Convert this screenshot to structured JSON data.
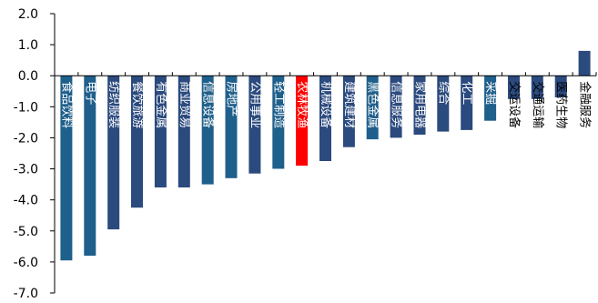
{
  "chart_data": {
    "type": "bar",
    "title": "",
    "xlabel": "",
    "ylabel": "",
    "ylim": [
      -7.0,
      2.0
    ],
    "y_ticks": [
      "2.0",
      "1.0",
      "0.0",
      "-1.0",
      "-2.0",
      "-3.0",
      "-4.0",
      "-5.0",
      "-6.0",
      "-7.0"
    ],
    "grid": false,
    "legend": "none",
    "colors": {
      "dark": "#2B4A7E",
      "teal": "#1F5F8B",
      "highlight": "#FF0000"
    },
    "categories": [
      "食品饮料",
      "电子",
      "纺织服装",
      "餐饮旅游",
      "有色金属",
      "商业贸易",
      "信息设备",
      "房地产",
      "公用事业",
      "轻工制造",
      "农林牧渔",
      "机械设备",
      "建筑建材",
      "黑色金属",
      "信息服务",
      "家用电器",
      "综合",
      "化工",
      "采掘",
      "交运设备",
      "交通运输",
      "医药生物",
      "金融服务"
    ],
    "values": [
      -5.95,
      -5.8,
      -4.95,
      -4.25,
      -3.6,
      -3.6,
      -3.5,
      -3.3,
      -3.15,
      -3.0,
      -2.9,
      -2.75,
      -2.3,
      -2.05,
      -2.0,
      -1.9,
      -1.8,
      -1.75,
      -1.45,
      -0.75,
      -0.75,
      -0.7,
      0.8
    ],
    "bar_colors": [
      "teal",
      "teal",
      "dark",
      "dark",
      "dark",
      "dark",
      "teal",
      "teal",
      "dark",
      "teal",
      "highlight",
      "dark",
      "dark",
      "teal",
      "dark",
      "dark",
      "dark",
      "dark",
      "teal",
      "dark",
      "dark",
      "dark",
      "dark"
    ]
  }
}
